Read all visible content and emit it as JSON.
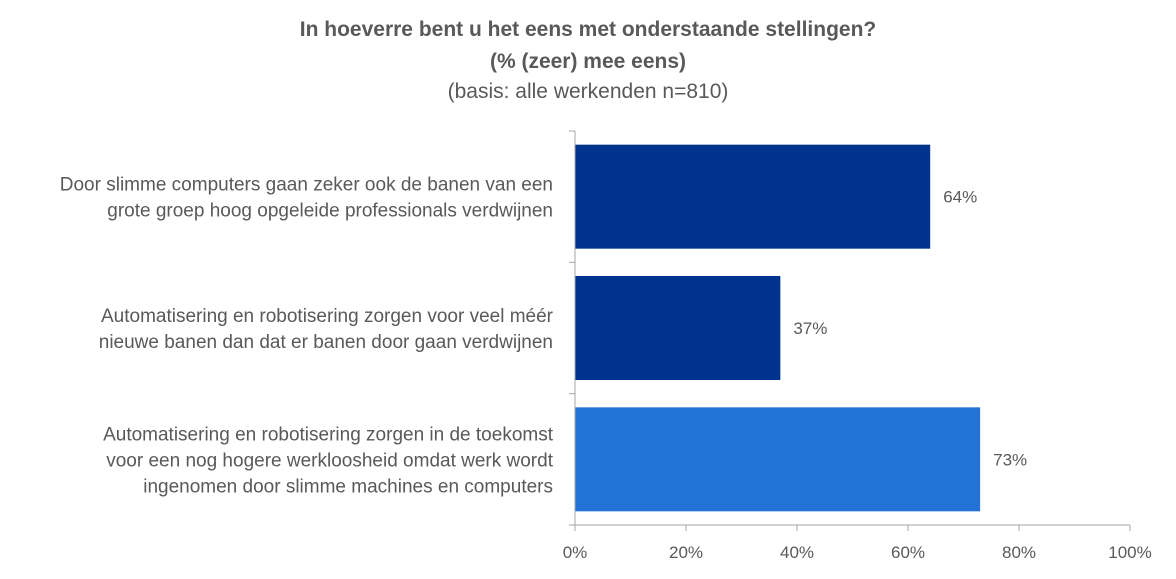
{
  "chart_data": {
    "type": "bar",
    "orientation": "horizontal",
    "title": "In hoeverre bent u het eens met onderstaande stellingen?",
    "subtitle": "(% (zeer) mee eens)",
    "base_note": "(basis: alle werkenden n=810)",
    "categories": [
      [
        "Door slimme computers gaan zeker ook de banen van een",
        "grote groep hoog opgeleide professionals verdwijnen"
      ],
      [
        "Automatisering en robotisering zorgen voor veel méér",
        "nieuwe banen dan dat er banen door gaan verdwijnen"
      ],
      [
        "Automatisering en robotisering zorgen in de toekomst",
        "voor een nog hogere werkloosheid omdat werk wordt",
        "ingenomen door slimme machines en computers"
      ]
    ],
    "values": [
      64,
      37,
      73
    ],
    "data_labels": [
      "64%",
      "37%",
      "73%"
    ],
    "bar_colors": [
      "#00338d",
      "#00338d",
      "#2272d7"
    ],
    "xlim": [
      0,
      100
    ],
    "x_ticks": [
      0,
      20,
      40,
      60,
      80,
      100
    ],
    "x_tick_labels": [
      "0%",
      "20%",
      "40%",
      "60%",
      "80%",
      "100%"
    ],
    "grid": false,
    "legend": "none",
    "axis_color": "#a6a6a6"
  }
}
